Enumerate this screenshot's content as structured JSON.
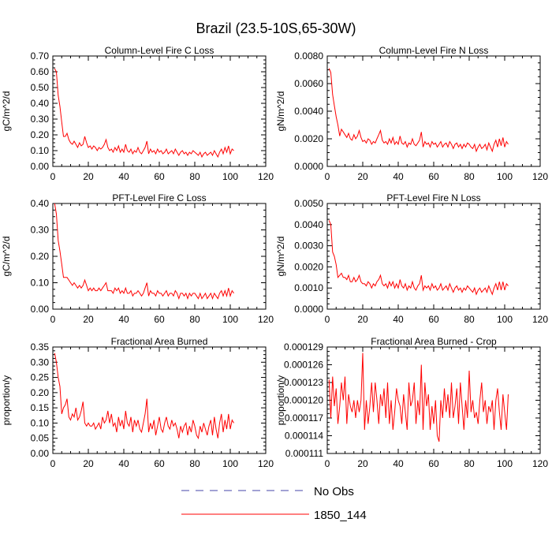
{
  "figure_title": "Brazil (23.5-10S,65-30W)",
  "legend": {
    "entries": [
      {
        "label": "No Obs",
        "color": "#4444aa",
        "style": "dashed"
      },
      {
        "label": "1850_144",
        "color": "#ff0000",
        "style": "solid"
      }
    ]
  },
  "chart_data": [
    {
      "type": "line",
      "title": "Column-Level Fire C Loss",
      "xlabel": "",
      "ylabel": "gC/m^2/d",
      "xlim": [
        0,
        120
      ],
      "ylim": [
        0,
        0.7
      ],
      "x_ticks": [
        "0",
        "20",
        "40",
        "60",
        "80",
        "100",
        "120"
      ],
      "y_ticks": [
        "0.00",
        "0.10",
        "0.20",
        "0.30",
        "0.40",
        "0.50",
        "0.60",
        "0.70"
      ],
      "series": [
        {
          "name": "1850_144",
          "color": "#ff0000",
          "values": [
            0.62,
            0.6,
            0.45,
            0.38,
            0.28,
            0.19,
            0.19,
            0.21,
            0.17,
            0.15,
            0.14,
            0.16,
            0.14,
            0.12,
            0.15,
            0.13,
            0.14,
            0.19,
            0.15,
            0.12,
            0.13,
            0.11,
            0.13,
            0.12,
            0.1,
            0.12,
            0.11,
            0.12,
            0.14,
            0.17,
            0.12,
            0.1,
            0.11,
            0.09,
            0.12,
            0.1,
            0.13,
            0.09,
            0.11,
            0.09,
            0.14,
            0.1,
            0.09,
            0.11,
            0.08,
            0.1,
            0.09,
            0.12,
            0.09,
            0.08,
            0.1,
            0.12,
            0.16,
            0.08,
            0.11,
            0.09,
            0.1,
            0.08,
            0.11,
            0.09,
            0.1,
            0.08,
            0.09,
            0.11,
            0.08,
            0.09,
            0.1,
            0.08,
            0.11,
            0.09,
            0.07,
            0.09,
            0.1,
            0.08,
            0.09,
            0.07,
            0.09,
            0.08,
            0.1,
            0.09,
            0.08,
            0.07,
            0.09,
            0.06,
            0.08,
            0.09,
            0.07,
            0.08,
            0.09,
            0.07,
            0.1,
            0.08,
            0.06,
            0.09,
            0.11,
            0.08,
            0.12,
            0.09,
            0.13,
            0.08,
            0.11,
            0.1
          ]
        }
      ]
    },
    {
      "type": "line",
      "title": "Column-Level Fire N Loss",
      "xlabel": "",
      "ylabel": "gN/m^2/d",
      "xlim": [
        0,
        120
      ],
      "ylim": [
        0,
        0.008
      ],
      "x_ticks": [
        "0",
        "20",
        "40",
        "60",
        "80",
        "100",
        "120"
      ],
      "y_ticks": [
        "0.0000",
        "0.0020",
        "0.0040",
        "0.0060",
        "0.0080"
      ],
      "series": [
        {
          "name": "1850_144",
          "color": "#ff0000",
          "values": [
            0.0071,
            0.0068,
            0.0052,
            0.0044,
            0.0036,
            0.003,
            0.0022,
            0.0027,
            0.0025,
            0.0023,
            0.0021,
            0.0024,
            0.002,
            0.0019,
            0.0023,
            0.002,
            0.0022,
            0.0026,
            0.0021,
            0.0018,
            0.0019,
            0.0017,
            0.002,
            0.0019,
            0.0016,
            0.0018,
            0.0017,
            0.002,
            0.0023,
            0.0026,
            0.0019,
            0.0017,
            0.0018,
            0.0016,
            0.002,
            0.0017,
            0.0021,
            0.0016,
            0.0018,
            0.0016,
            0.0022,
            0.0017,
            0.0016,
            0.0018,
            0.0014,
            0.0017,
            0.0016,
            0.002,
            0.0016,
            0.0015,
            0.0017,
            0.0019,
            0.0025,
            0.0014,
            0.0018,
            0.0016,
            0.0017,
            0.0014,
            0.0018,
            0.0016,
            0.0017,
            0.0014,
            0.0016,
            0.0018,
            0.0014,
            0.0016,
            0.0017,
            0.0014,
            0.0018,
            0.0016,
            0.0013,
            0.0016,
            0.0017,
            0.0014,
            0.0016,
            0.0013,
            0.0016,
            0.0014,
            0.0017,
            0.0016,
            0.0014,
            0.0013,
            0.0016,
            0.0011,
            0.0014,
            0.0016,
            0.0013,
            0.0014,
            0.0016,
            0.0012,
            0.0017,
            0.0014,
            0.0011,
            0.0016,
            0.0019,
            0.0014,
            0.002,
            0.0015,
            0.0021,
            0.0014,
            0.0018,
            0.0016
          ]
        }
      ]
    },
    {
      "type": "line",
      "title": "PFT-Level Fire C Loss",
      "xlabel": "",
      "ylabel": "gC/m^2/d",
      "xlim": [
        0,
        120
      ],
      "ylim": [
        0,
        0.4
      ],
      "x_ticks": [
        "0",
        "20",
        "40",
        "60",
        "80",
        "100",
        "120"
      ],
      "y_ticks": [
        "0.00",
        "0.10",
        "0.20",
        "0.30",
        "0.40"
      ],
      "series": [
        {
          "name": "1850_144",
          "color": "#ff0000",
          "values": [
            0.4,
            0.36,
            0.26,
            0.22,
            0.17,
            0.12,
            0.12,
            0.12,
            0.11,
            0.1,
            0.09,
            0.1,
            0.09,
            0.08,
            0.09,
            0.08,
            0.09,
            0.11,
            0.09,
            0.07,
            0.08,
            0.07,
            0.08,
            0.07,
            0.07,
            0.08,
            0.07,
            0.08,
            0.09,
            0.1,
            0.07,
            0.07,
            0.07,
            0.06,
            0.08,
            0.07,
            0.08,
            0.06,
            0.07,
            0.06,
            0.08,
            0.06,
            0.06,
            0.07,
            0.05,
            0.06,
            0.06,
            0.07,
            0.06,
            0.05,
            0.06,
            0.08,
            0.1,
            0.05,
            0.07,
            0.06,
            0.06,
            0.05,
            0.07,
            0.06,
            0.06,
            0.05,
            0.06,
            0.07,
            0.05,
            0.06,
            0.06,
            0.05,
            0.07,
            0.06,
            0.04,
            0.06,
            0.06,
            0.05,
            0.06,
            0.04,
            0.06,
            0.05,
            0.06,
            0.06,
            0.05,
            0.04,
            0.06,
            0.04,
            0.05,
            0.06,
            0.04,
            0.05,
            0.06,
            0.04,
            0.06,
            0.05,
            0.04,
            0.06,
            0.07,
            0.05,
            0.07,
            0.05,
            0.08,
            0.05,
            0.07,
            0.06
          ]
        }
      ]
    },
    {
      "type": "line",
      "title": "PFT-Level Fire N Loss",
      "xlabel": "",
      "ylabel": "gN/m^2/d",
      "xlim": [
        0,
        120
      ],
      "ylim": [
        0,
        0.005
      ],
      "x_ticks": [
        "0",
        "20",
        "40",
        "60",
        "80",
        "100",
        "120"
      ],
      "y_ticks": [
        "0.0000",
        "0.0010",
        "0.0020",
        "0.0030",
        "0.0040",
        "0.0050"
      ],
      "series": [
        {
          "name": "1850_144",
          "color": "#ff0000",
          "values": [
            0.0042,
            0.004,
            0.0027,
            0.0025,
            0.0021,
            0.0015,
            0.0016,
            0.0017,
            0.0015,
            0.0015,
            0.0014,
            0.0016,
            0.0013,
            0.0013,
            0.0015,
            0.0013,
            0.0014,
            0.0016,
            0.0013,
            0.0012,
            0.0012,
            0.0011,
            0.0013,
            0.0012,
            0.001,
            0.0012,
            0.0011,
            0.0013,
            0.0014,
            0.0016,
            0.0012,
            0.0011,
            0.0012,
            0.001,
            0.0013,
            0.0011,
            0.0013,
            0.001,
            0.0012,
            0.001,
            0.0014,
            0.0011,
            0.001,
            0.0012,
            0.0009,
            0.0011,
            0.001,
            0.0013,
            0.001,
            0.0009,
            0.0011,
            0.0012,
            0.0016,
            0.0009,
            0.0011,
            0.001,
            0.0011,
            0.0009,
            0.0012,
            0.001,
            0.0011,
            0.0009,
            0.001,
            0.0012,
            0.0009,
            0.001,
            0.0011,
            0.0009,
            0.0012,
            0.001,
            0.0008,
            0.001,
            0.0011,
            0.0009,
            0.001,
            0.0008,
            0.001,
            0.0009,
            0.0011,
            0.001,
            0.0009,
            0.0008,
            0.001,
            0.0007,
            0.0009,
            0.001,
            0.0008,
            0.0009,
            0.001,
            0.0008,
            0.0011,
            0.0009,
            0.0007,
            0.001,
            0.0012,
            0.0009,
            0.0013,
            0.0009,
            0.0013,
            0.0009,
            0.0012,
            0.0011
          ]
        }
      ]
    },
    {
      "type": "line",
      "title": "Fractional Area Burned",
      "xlabel": "",
      "ylabel": "proportion/y",
      "xlim": [
        0,
        120
      ],
      "ylim": [
        0,
        0.35
      ],
      "x_ticks": [
        "0",
        "20",
        "40",
        "60",
        "80",
        "100",
        "120"
      ],
      "y_ticks": [
        "0.00",
        "0.05",
        "0.10",
        "0.15",
        "0.20",
        "0.25",
        "0.30",
        "0.35"
      ],
      "series": [
        {
          "name": "1850_144",
          "color": "#ff0000",
          "values": [
            0.33,
            0.3,
            0.25,
            0.22,
            0.13,
            0.15,
            0.16,
            0.18,
            0.12,
            0.11,
            0.13,
            0.12,
            0.15,
            0.11,
            0.12,
            0.14,
            0.17,
            0.1,
            0.09,
            0.1,
            0.09,
            0.09,
            0.1,
            0.08,
            0.09,
            0.1,
            0.08,
            0.12,
            0.1,
            0.11,
            0.14,
            0.1,
            0.13,
            0.09,
            0.1,
            0.07,
            0.12,
            0.09,
            0.11,
            0.08,
            0.14,
            0.1,
            0.09,
            0.12,
            0.07,
            0.11,
            0.09,
            0.11,
            0.08,
            0.07,
            0.1,
            0.13,
            0.18,
            0.07,
            0.1,
            0.08,
            0.11,
            0.06,
            0.09,
            0.12,
            0.08,
            0.07,
            0.1,
            0.12,
            0.09,
            0.08,
            0.11,
            0.09,
            0.1,
            0.08,
            0.05,
            0.09,
            0.07,
            0.09,
            0.1,
            0.06,
            0.09,
            0.07,
            0.11,
            0.09,
            0.06,
            0.05,
            0.09,
            0.07,
            0.1,
            0.08,
            0.06,
            0.09,
            0.11,
            0.06,
            0.12,
            0.08,
            0.05,
            0.1,
            0.13,
            0.07,
            0.11,
            0.08,
            0.13,
            0.08,
            0.11,
            0.1
          ]
        }
      ]
    },
    {
      "type": "line",
      "title": "Fractional Area Burned - Crop",
      "xlabel": "",
      "ylabel": "proportion/y",
      "xlim": [
        0,
        120
      ],
      "ylim": [
        0.000111,
        0.000129
      ],
      "x_ticks": [
        "0",
        "20",
        "40",
        "60",
        "80",
        "100",
        "120"
      ],
      "y_ticks": [
        "0.000111",
        "0.000114",
        "0.000117",
        "0.000120",
        "0.000123",
        "0.000126",
        "0.000129"
      ],
      "series": [
        {
          "name": "1850_144",
          "color": "#ff0000",
          "values": [
            0.0001235,
            0.000117,
            0.000124,
            0.000119,
            0.000122,
            0.000116,
            0.000119,
            0.000123,
            0.00012,
            0.000124,
            0.000116,
            0.000121,
            0.000119,
            0.000118,
            0.00012,
            0.000117,
            0.00012,
            0.000118,
            0.00012,
            0.000128,
            0.000115,
            0.00012,
            0.000116,
            0.000119,
            0.000123,
            0.000118,
            0.000123,
            0.00012,
            0.000116,
            0.000121,
            0.000119,
            0.000122,
            0.000117,
            0.000123,
            0.000116,
            0.00012,
            0.000115,
            0.000118,
            0.000122,
            0.00012,
            0.000119,
            0.000116,
            0.000121,
            0.000118,
            0.000115,
            0.000123,
            0.000119,
            0.00012,
            0.000123,
            0.000116,
            0.00012,
            0.0001175,
            0.000126,
            0.000115,
            0.000123,
            0.000119,
            0.000121,
            0.000115,
            0.000119,
            0.000116,
            0.00012,
            0.000114,
            0.000113,
            0.00012,
            0.000117,
            0.000122,
            0.000118,
            0.000121,
            0.000117,
            0.000123,
            0.000117,
            0.000119,
            0.000122,
            0.000116,
            0.000123,
            0.000119,
            0.000115,
            0.00012,
            0.000117,
            0.000125,
            0.000118,
            0.00012,
            0.000117,
            0.000118,
            0.000116,
            0.00012,
            0.000123,
            0.000118,
            0.00012,
            0.000116,
            0.000119,
            0.000118,
            0.00012,
            0.000115,
            0.00012,
            0.000122,
            0.000118,
            0.000115,
            0.000121,
            0.000118,
            0.000115,
            0.000121
          ]
        }
      ]
    }
  ]
}
